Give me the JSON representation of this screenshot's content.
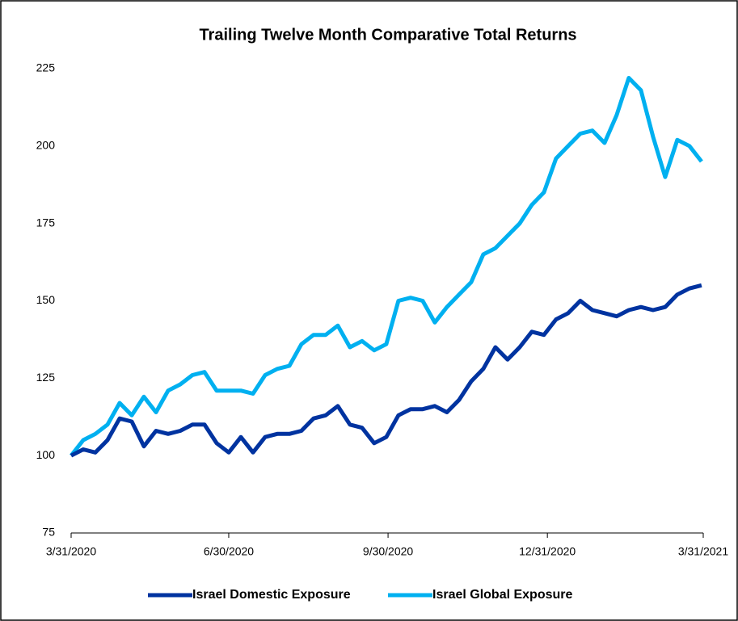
{
  "chart_data": {
    "type": "line",
    "title": "Trailing Twelve Month Comparative Total Returns",
    "x": [
      "3/31/2020",
      "4/7/2020",
      "4/14/2020",
      "4/21/2020",
      "4/28/2020",
      "5/5/2020",
      "5/12/2020",
      "5/19/2020",
      "5/26/2020",
      "6/2/2020",
      "6/9/2020",
      "6/16/2020",
      "6/23/2020",
      "6/30/2020",
      "7/7/2020",
      "7/14/2020",
      "7/21/2020",
      "7/28/2020",
      "8/4/2020",
      "8/11/2020",
      "8/18/2020",
      "8/25/2020",
      "9/1/2020",
      "9/8/2020",
      "9/15/2020",
      "9/22/2020",
      "9/29/2020",
      "10/6/2020",
      "10/13/2020",
      "10/20/2020",
      "10/27/2020",
      "11/3/2020",
      "11/10/2020",
      "11/17/2020",
      "11/24/2020",
      "12/1/2020",
      "12/8/2020",
      "12/15/2020",
      "12/22/2020",
      "12/29/2020",
      "1/5/2021",
      "1/12/2021",
      "1/19/2021",
      "1/26/2021",
      "2/2/2021",
      "2/9/2021",
      "2/16/2021",
      "2/23/2021",
      "3/2/2021",
      "3/9/2021",
      "3/16/2021",
      "3/23/2021",
      "3/30/2021"
    ],
    "series": [
      {
        "name": "Israel Domestic Exposure",
        "color": "#0033a0",
        "values": [
          100,
          102,
          101,
          105,
          112,
          111,
          103,
          108,
          107,
          108,
          110,
          110,
          104,
          101,
          106,
          101,
          106,
          107,
          107,
          108,
          112,
          113,
          116,
          110,
          109,
          104,
          106,
          113,
          115,
          115,
          116,
          114,
          118,
          124,
          128,
          135,
          131,
          135,
          140,
          139,
          144,
          146,
          150,
          147,
          146,
          145,
          147,
          148,
          147,
          148,
          152,
          154,
          155
        ]
      },
      {
        "name": "Israel Global Exposure",
        "color": "#00b0f0",
        "values": [
          100,
          105,
          107,
          110,
          117,
          113,
          119,
          114,
          121,
          123,
          126,
          127,
          121,
          121,
          121,
          120,
          126,
          128,
          129,
          136,
          139,
          139,
          142,
          135,
          137,
          134,
          136,
          150,
          151,
          150,
          143,
          148,
          152,
          156,
          165,
          167,
          171,
          175,
          181,
          185,
          196,
          200,
          204,
          205,
          201,
          210,
          222,
          218,
          203,
          190,
          202,
          200,
          195
        ]
      }
    ],
    "xlim": [
      "3/31/2020",
      "3/31/2021"
    ],
    "xticks": [
      "3/31/2020",
      "6/30/2020",
      "9/30/2020",
      "12/31/2020",
      "3/31/2021"
    ],
    "ylim": [
      75,
      225
    ],
    "yticks": [
      75,
      100,
      125,
      150,
      175,
      200,
      225
    ],
    "grid": false,
    "legend": "bottom"
  }
}
